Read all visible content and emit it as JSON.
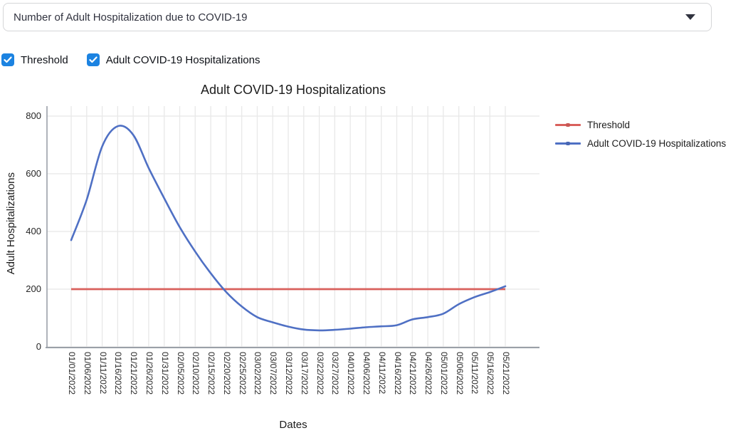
{
  "selectbox": {
    "value": "Number of Adult Hospitalization due to COVID-19"
  },
  "checkboxes": [
    {
      "label": "Threshold",
      "checked": true
    },
    {
      "label": "Adult COVID-19 Hospitalizations",
      "checked": true
    }
  ],
  "chart_data": {
    "type": "line",
    "title": "Adult COVID-19 Hospitalizations",
    "xlabel": "Dates",
    "ylabel": "Adult Hospitalizations",
    "ylim": [
      0,
      800
    ],
    "yticks": [
      0,
      200,
      400,
      600,
      800
    ],
    "grid": true,
    "legend_position": "right",
    "categories": [
      "01/01/2022",
      "01/06/2022",
      "01/11/2022",
      "01/16/2022",
      "01/21/2022",
      "01/26/2022",
      "01/31/2022",
      "02/05/2022",
      "02/10/2022",
      "02/15/2022",
      "02/20/2022",
      "02/25/2022",
      "03/02/2022",
      "03/07/2022",
      "03/12/2022",
      "03/17/2022",
      "03/22/2022",
      "03/27/2022",
      "04/01/2022",
      "04/06/2022",
      "04/11/2022",
      "04/16/2022",
      "04/21/2022",
      "04/26/2022",
      "05/01/2022",
      "05/06/2022",
      "05/11/2022",
      "05/16/2022",
      "05/21/2022"
    ],
    "series": [
      {
        "name": "Threshold",
        "color": "#d9605c",
        "constant_value": 200
      },
      {
        "name": "Adult COVID-19 Hospitalizations",
        "color": "#4f70c4",
        "values": [
          370,
          510,
          695,
          765,
          735,
          620,
          515,
          415,
          330,
          255,
          190,
          140,
          103,
          85,
          70,
          60,
          57,
          59,
          63,
          68,
          71,
          75,
          95,
          103,
          115,
          148,
          172,
          190,
          210
        ]
      }
    ]
  },
  "icons": {
    "dropdown_caret": "caret-down",
    "checkbox_check": "checkmark"
  },
  "colors": {
    "threshold_line": "#d9605c",
    "data_line": "#4f70c4",
    "checkbox_fill": "#1c83e1",
    "gridline": "#e8e8e8",
    "axis_spine": "#9ba0a8",
    "select_border": "#d5d6d8"
  }
}
